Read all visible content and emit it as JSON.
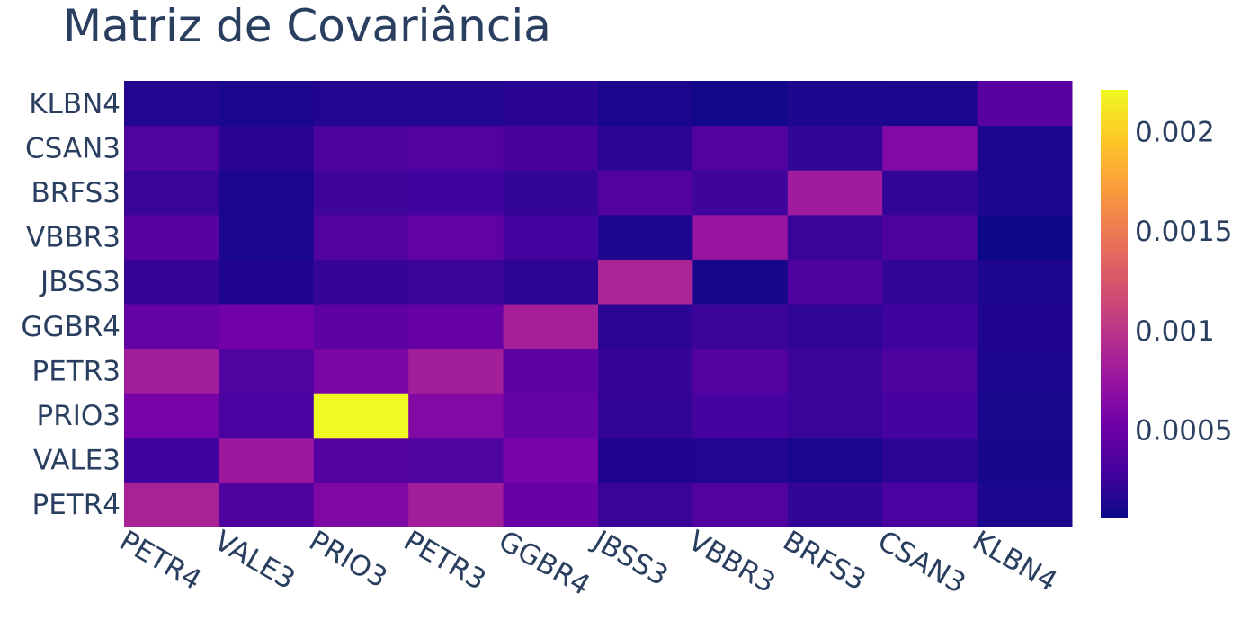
{
  "chart_data": {
    "type": "heatmap",
    "title": "Matriz de Covariância",
    "x_categories": [
      "PETR4",
      "VALE3",
      "PRIO3",
      "PETR3",
      "GGBR4",
      "JBSS3",
      "VBBR3",
      "BRFS3",
      "CSAN3",
      "KLBN4"
    ],
    "y_categories": [
      "PETR4",
      "VALE3",
      "PRIO3",
      "PETR3",
      "GGBR4",
      "JBSS3",
      "VBBR3",
      "BRFS3",
      "CSAN3",
      "KLBN4"
    ],
    "z": [
      [
        0.00086,
        0.00034,
        0.00061,
        0.00082,
        0.00048,
        0.00025,
        0.00037,
        0.00022,
        0.00032,
        0.00012
      ],
      [
        0.00028,
        0.00078,
        0.00038,
        0.00035,
        0.00057,
        0.00014,
        0.00015,
        0.00012,
        0.00019,
        0.0001
      ],
      [
        0.00056,
        0.00032,
        0.00221,
        0.00063,
        0.00046,
        0.00022,
        0.0003,
        0.00024,
        0.0003,
        0.00011
      ],
      [
        0.00082,
        0.00035,
        0.00059,
        0.00083,
        0.00043,
        0.00023,
        0.00038,
        0.00026,
        0.00034,
        0.00013
      ],
      [
        0.00046,
        0.00054,
        0.00043,
        0.00047,
        0.00084,
        0.00019,
        0.00026,
        0.00021,
        0.00028,
        0.00014
      ],
      [
        0.00023,
        0.00014,
        0.00023,
        0.00025,
        0.00019,
        0.00087,
        0.0001,
        0.00034,
        0.00021,
        0.00013
      ],
      [
        0.0004,
        0.00012,
        0.00037,
        0.00044,
        0.00029,
        0.00013,
        0.00075,
        0.00025,
        0.00034,
        6e-05
      ],
      [
        0.00024,
        0.00012,
        0.00027,
        0.00028,
        0.00022,
        0.00036,
        0.00027,
        0.0008,
        0.00022,
        0.00013
      ],
      [
        0.00035,
        0.00018,
        0.00033,
        0.00036,
        0.00031,
        0.00019,
        0.00037,
        0.00022,
        0.00063,
        0.00012
      ],
      [
        0.00015,
        0.00012,
        0.00015,
        0.00015,
        0.00018,
        0.00012,
        8e-05,
        0.00013,
        0.00012,
        0.0004
      ]
    ],
    "zmin": 6e-05,
    "zmax": 0.00221,
    "colorscale": "Plasma",
    "colorbar_ticks": [
      0.0005,
      0.001,
      0.0015,
      0.002
    ],
    "colorbar_tick_labels": [
      "0.0005",
      "0.001",
      "0.0015",
      "0.002"
    ],
    "colors": {
      "plasma": [
        "#0d0887",
        "#46039f",
        "#7201a8",
        "#9c179e",
        "#bd3786",
        "#d8576b",
        "#ed7953",
        "#fb9f3a",
        "#fdca26",
        "#f0f921"
      ],
      "text": "#2a3f5f",
      "background": "#ffffff"
    }
  }
}
